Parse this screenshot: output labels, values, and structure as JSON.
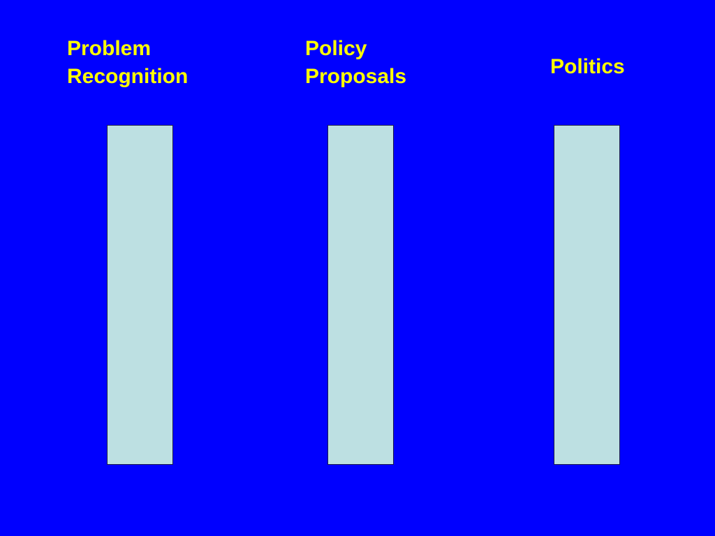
{
  "columns": [
    {
      "label": [
        "Problem",
        "Recognition"
      ]
    },
    {
      "label": [
        "Policy",
        "Proposals"
      ]
    },
    {
      "label": [
        "Politics"
      ]
    }
  ]
}
